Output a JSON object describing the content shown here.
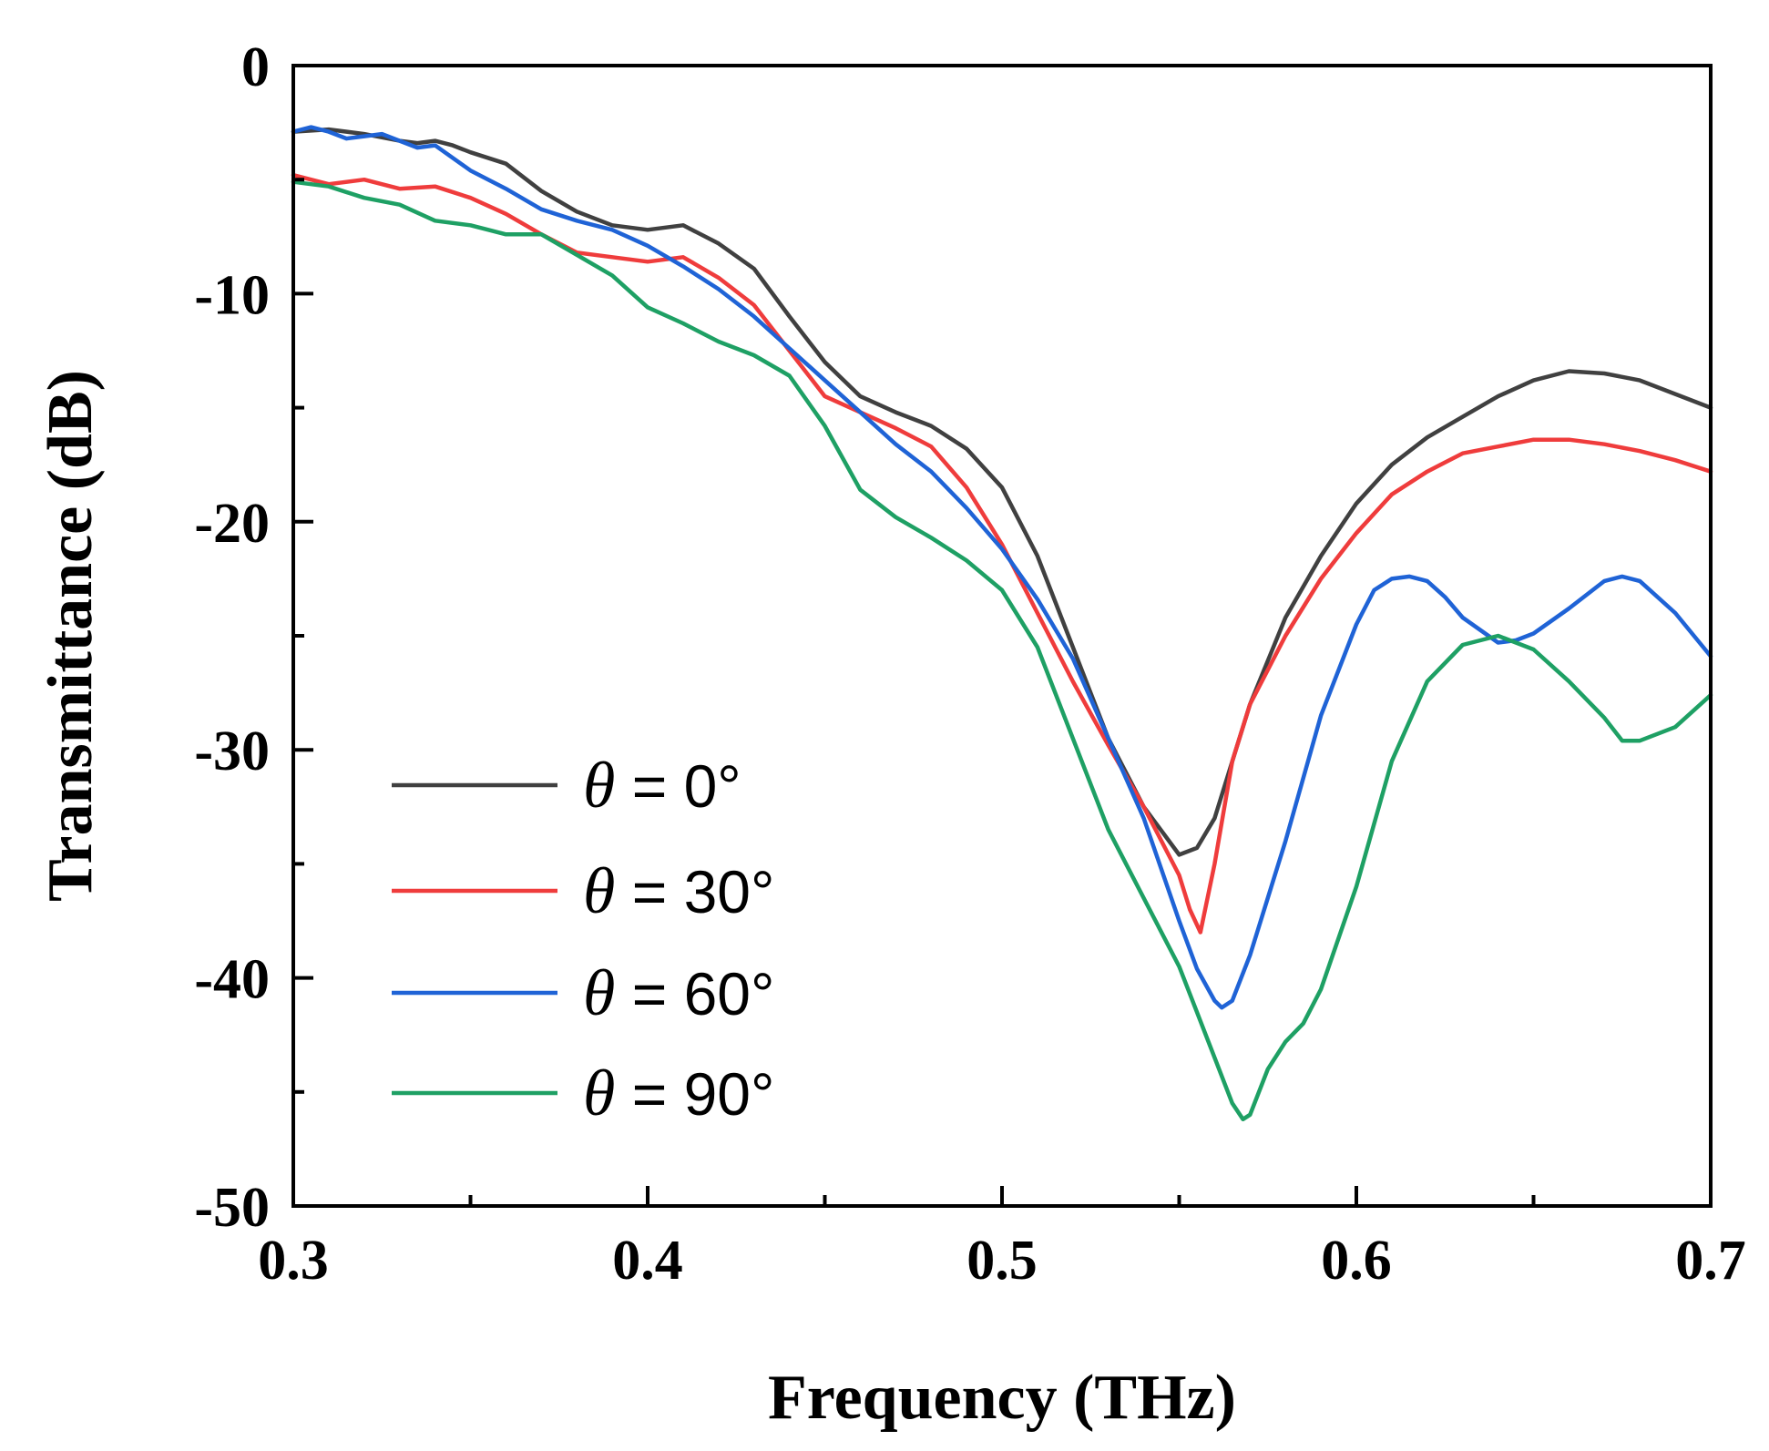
{
  "chart_data": {
    "type": "line",
    "title": "",
    "xlabel": "Frequency (THz)",
    "ylabel": "Transmittance (dB)",
    "xlim": [
      0.3,
      0.7
    ],
    "ylim": [
      -50,
      0
    ],
    "xticks": [
      0.3,
      0.4,
      0.5,
      0.6,
      0.7
    ],
    "xtick_labels": [
      "0.3",
      "0.4",
      "0.5",
      "0.6",
      "0.7"
    ],
    "yticks": [
      0,
      -10,
      -20,
      -30,
      -40,
      -50
    ],
    "ytick_labels": [
      "0",
      "-10",
      "-20",
      "-30",
      "-40",
      "-50"
    ],
    "grid": false,
    "legend_position": "bottom-left",
    "series": [
      {
        "name": "θ = 0°",
        "symbol": "θ",
        "label_rest": " = 0°",
        "color": "#404040",
        "x": [
          0.3,
          0.31,
          0.32,
          0.33,
          0.335,
          0.34,
          0.345,
          0.35,
          0.36,
          0.37,
          0.38,
          0.39,
          0.4,
          0.405,
          0.41,
          0.42,
          0.43,
          0.44,
          0.45,
          0.46,
          0.47,
          0.48,
          0.49,
          0.5,
          0.51,
          0.52,
          0.53,
          0.54,
          0.55,
          0.555,
          0.56,
          0.57,
          0.58,
          0.59,
          0.6,
          0.61,
          0.62,
          0.63,
          0.64,
          0.65,
          0.66,
          0.67,
          0.68,
          0.69,
          0.7
        ],
        "y": [
          -2.9,
          -2.8,
          -3.0,
          -3.3,
          -3.4,
          -3.3,
          -3.5,
          -3.8,
          -4.3,
          -5.5,
          -6.4,
          -7.0,
          -7.2,
          -7.1,
          -7.0,
          -7.8,
          -8.9,
          -11.0,
          -13.0,
          -14.5,
          -15.2,
          -15.8,
          -16.8,
          -18.5,
          -21.5,
          -25.5,
          -29.5,
          -32.5,
          -34.6,
          -34.3,
          -33.0,
          -28.0,
          -24.2,
          -21.5,
          -19.2,
          -17.5,
          -16.3,
          -15.4,
          -14.5,
          -13.8,
          -13.4,
          -13.5,
          -13.8,
          -14.4,
          -15.0
        ]
      },
      {
        "name": "θ = 30°",
        "symbol": "θ",
        "label_rest": " = 30°",
        "color": "#ef3c3c",
        "x": [
          0.3,
          0.31,
          0.32,
          0.33,
          0.34,
          0.35,
          0.36,
          0.37,
          0.38,
          0.39,
          0.4,
          0.41,
          0.42,
          0.43,
          0.44,
          0.45,
          0.46,
          0.47,
          0.48,
          0.49,
          0.5,
          0.51,
          0.52,
          0.53,
          0.54,
          0.55,
          0.553,
          0.556,
          0.56,
          0.565,
          0.57,
          0.58,
          0.59,
          0.6,
          0.61,
          0.62,
          0.63,
          0.64,
          0.65,
          0.66,
          0.67,
          0.68,
          0.69,
          0.7
        ],
        "y": [
          -4.8,
          -5.2,
          -5.0,
          -5.4,
          -5.3,
          -5.8,
          -6.5,
          -7.4,
          -8.2,
          -8.4,
          -8.6,
          -8.4,
          -9.3,
          -10.5,
          -12.5,
          -14.5,
          -15.2,
          -15.9,
          -16.7,
          -18.5,
          -21.0,
          -24.0,
          -27.0,
          -29.8,
          -32.5,
          -35.5,
          -37.0,
          -38.0,
          -35.0,
          -30.5,
          -28.0,
          -25.0,
          -22.5,
          -20.5,
          -18.8,
          -17.8,
          -17.0,
          -16.7,
          -16.4,
          -16.4,
          -16.6,
          -16.9,
          -17.3,
          -17.8
        ]
      },
      {
        "name": "θ = 60°",
        "symbol": "θ",
        "label_rest": " = 60°",
        "color": "#1f63d6",
        "x": [
          0.3,
          0.305,
          0.31,
          0.315,
          0.32,
          0.325,
          0.33,
          0.335,
          0.34,
          0.35,
          0.36,
          0.37,
          0.38,
          0.39,
          0.4,
          0.41,
          0.42,
          0.43,
          0.44,
          0.45,
          0.46,
          0.47,
          0.48,
          0.49,
          0.5,
          0.51,
          0.52,
          0.53,
          0.54,
          0.55,
          0.555,
          0.56,
          0.562,
          0.565,
          0.57,
          0.58,
          0.59,
          0.6,
          0.605,
          0.61,
          0.615,
          0.62,
          0.625,
          0.63,
          0.64,
          0.645,
          0.65,
          0.66,
          0.67,
          0.675,
          0.68,
          0.69,
          0.7
        ],
        "y": [
          -2.9,
          -2.7,
          -2.9,
          -3.2,
          -3.1,
          -3.0,
          -3.3,
          -3.6,
          -3.5,
          -4.6,
          -5.4,
          -6.3,
          -6.8,
          -7.2,
          -7.9,
          -8.8,
          -9.8,
          -11.0,
          -12.4,
          -13.8,
          -15.2,
          -16.6,
          -17.8,
          -19.4,
          -21.2,
          -23.4,
          -26.0,
          -29.5,
          -33.0,
          -37.5,
          -39.6,
          -41.0,
          -41.3,
          -41.0,
          -39.0,
          -34.0,
          -28.5,
          -24.5,
          -23.0,
          -22.5,
          -22.4,
          -22.6,
          -23.3,
          -24.2,
          -25.3,
          -25.2,
          -24.9,
          -23.8,
          -22.6,
          -22.4,
          -22.6,
          -24.0,
          -25.9
        ]
      },
      {
        "name": "θ = 90°",
        "symbol": "θ",
        "label_rest": " = 90°",
        "color": "#1ea064",
        "x": [
          0.3,
          0.31,
          0.32,
          0.33,
          0.34,
          0.35,
          0.36,
          0.37,
          0.38,
          0.39,
          0.4,
          0.41,
          0.42,
          0.43,
          0.44,
          0.45,
          0.46,
          0.47,
          0.48,
          0.49,
          0.5,
          0.51,
          0.52,
          0.53,
          0.54,
          0.55,
          0.555,
          0.56,
          0.565,
          0.568,
          0.57,
          0.575,
          0.58,
          0.585,
          0.59,
          0.6,
          0.61,
          0.62,
          0.63,
          0.64,
          0.65,
          0.66,
          0.67,
          0.675,
          0.68,
          0.69,
          0.7
        ],
        "y": [
          -5.1,
          -5.3,
          -5.8,
          -6.1,
          -6.8,
          -7.0,
          -7.4,
          -7.4,
          -8.3,
          -9.2,
          -10.6,
          -11.3,
          -12.1,
          -12.7,
          -13.6,
          -15.8,
          -18.6,
          -19.8,
          -20.7,
          -21.7,
          -23.0,
          -25.5,
          -29.5,
          -33.5,
          -36.5,
          -39.5,
          -41.5,
          -43.5,
          -45.5,
          -46.2,
          -46.0,
          -44.0,
          -42.8,
          -42.0,
          -40.5,
          -36.0,
          -30.5,
          -27.0,
          -25.4,
          -25.0,
          -25.6,
          -27.0,
          -28.6,
          -29.6,
          -29.6,
          -29.0,
          -27.6
        ]
      }
    ]
  }
}
